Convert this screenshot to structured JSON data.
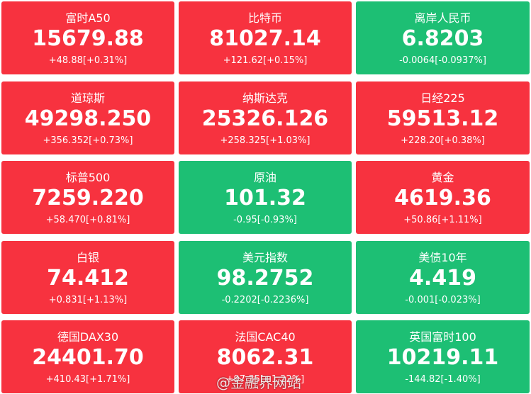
{
  "tiles": [
    {
      "name": "富时A50",
      "price": "15679.88",
      "change": "+48.88[+0.31%]",
      "color": "#f7323f"
    },
    {
      "name": "比特币",
      "price": "81027.14",
      "change": "+121.62[+0.15%]",
      "color": "#f7323f"
    },
    {
      "name": "离岸人民币",
      "price": "6.8203",
      "change": "-0.0064[-0.0937%]",
      "color": "#1dbf74"
    },
    {
      "name": "道琼斯",
      "price": "49298.250",
      "change": "+356.352[+0.73%]",
      "color": "#f7323f"
    },
    {
      "name": "纳斯达克",
      "price": "25326.126",
      "change": "+258.325[+1.03%]",
      "color": "#f7323f"
    },
    {
      "name": "日经225",
      "price": "59513.12",
      "change": "+228.20[+0.38%]",
      "color": "#f7323f"
    },
    {
      "name": "标普500",
      "price": "7259.220",
      "change": "+58.470[+0.81%]",
      "color": "#f7323f"
    },
    {
      "name": "原油",
      "price": "101.32",
      "change": "-0.95[-0.93%]",
      "color": "#1dbf74"
    },
    {
      "name": "黄金",
      "price": "4619.36",
      "change": "+50.86[+1.11%]",
      "color": "#f7323f"
    },
    {
      "name": "白银",
      "price": "74.412",
      "change": "+0.831[+1.13%]",
      "color": "#f7323f"
    },
    {
      "name": "美元指数",
      "price": "98.2752",
      "change": "-0.2202[-0.2236%]",
      "color": "#1dbf74"
    },
    {
      "name": "美债10年",
      "price": "4.419",
      "change": "-0.001[-0.023%]",
      "color": "#1dbf74"
    },
    {
      "name": "德国DAX30",
      "price": "24401.70",
      "change": "+410.43[+1.71%]",
      "color": "#f7323f"
    },
    {
      "name": "法国CAC40",
      "price": "8062.31",
      "change": "+97.35[+1.22%]",
      "color": "#f7323f"
    },
    {
      "name": "英国富时100",
      "price": "10219.11",
      "change": "-144.82[-1.40%]",
      "color": "#1dbf74"
    }
  ],
  "watermark": "@金融界网站"
}
